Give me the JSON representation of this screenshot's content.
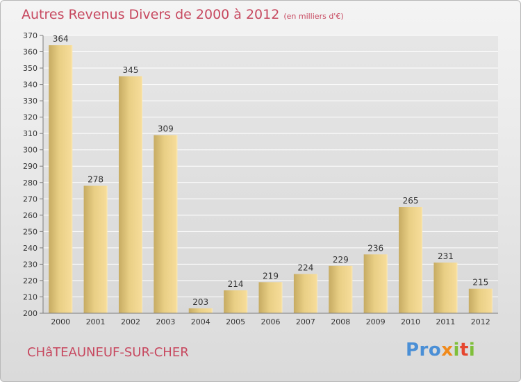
{
  "header": {
    "title": "Autres Revenus Divers de 2000 à 2012",
    "subtitle": "(en milliers d'€)"
  },
  "footer": {
    "town": "CHâTEAUNEUF-SUR-CHER",
    "logo": "Proxiti"
  },
  "chart_data": {
    "type": "bar",
    "title": "Autres Revenus Divers de 2000 à 2012",
    "subtitle": "(en milliers d'€)",
    "xlabel": "",
    "ylabel": "",
    "categories": [
      "2000",
      "2001",
      "2002",
      "2003",
      "2004",
      "2005",
      "2006",
      "2007",
      "2008",
      "2009",
      "2010",
      "2011",
      "2012"
    ],
    "values": [
      364,
      278,
      345,
      309,
      203,
      214,
      219,
      224,
      229,
      236,
      265,
      231,
      215
    ],
    "ylim": [
      200,
      370
    ],
    "yticks": [
      200,
      210,
      220,
      230,
      240,
      250,
      260,
      270,
      280,
      290,
      300,
      310,
      320,
      330,
      340,
      350,
      360,
      370
    ],
    "grid": true,
    "colors": {
      "bar_light": "#f7dd9b",
      "bar_dark": "#c6ab62",
      "grid": "#ffffff",
      "axis": "#7a7a7a"
    }
  }
}
